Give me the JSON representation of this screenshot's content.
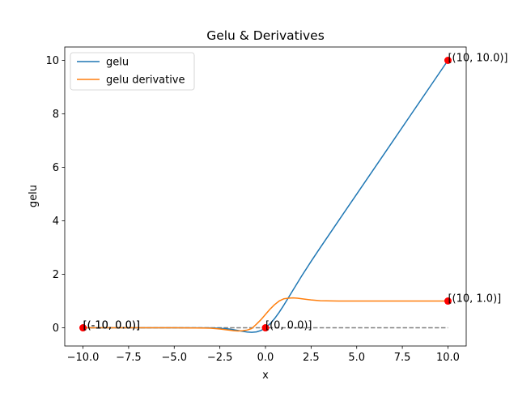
{
  "chart_data": {
    "type": "line",
    "title": "Gelu & Derivatives",
    "xlabel": "x",
    "ylabel": "gelu",
    "xlim": [
      -11,
      11
    ],
    "ylim": [
      -0.68,
      10.5
    ],
    "xticks": [
      -10,
      -7.5,
      -5,
      -2.5,
      0,
      2.5,
      5,
      7.5,
      10
    ],
    "xtick_labels": [
      "−10.0",
      "−7.5",
      "−5.0",
      "−2.5",
      "0.0",
      "2.5",
      "5.0",
      "7.5",
      "10.0"
    ],
    "yticks": [
      0,
      2,
      4,
      6,
      8,
      10
    ],
    "ytick_labels": [
      "0",
      "2",
      "4",
      "6",
      "8",
      "10"
    ],
    "grid": false,
    "legend_position": "top-left",
    "series": [
      {
        "name": "gelu",
        "color": "#1f77b4",
        "x": [
          -10,
          -5,
          -3,
          -2.5,
          -2,
          -1.75,
          -1.5,
          -1.25,
          -1,
          -0.75,
          -0.5,
          -0.25,
          0,
          0.25,
          0.5,
          0.75,
          1,
          1.25,
          1.5,
          2,
          2.5,
          3,
          4,
          5,
          6,
          7,
          8,
          9,
          10
        ],
        "y": [
          0,
          0,
          -0.0036,
          -0.0155,
          -0.0454,
          -0.0702,
          -0.1002,
          -0.1319,
          -0.1587,
          -0.17,
          -0.1543,
          -0.0998,
          0,
          0.1502,
          0.3457,
          0.58,
          0.8413,
          1.1181,
          1.3998,
          1.9546,
          2.4845,
          2.9964,
          4.0,
          5.0,
          6.0,
          7.0,
          8.0,
          9.0,
          10.0
        ]
      },
      {
        "name": "gelu derivative",
        "color": "#ff7f0e",
        "x": [
          -10,
          -5,
          -3,
          -2.5,
          -2,
          -1.75,
          -1.5,
          -1.25,
          -1,
          -0.75,
          -0.5,
          -0.25,
          0,
          0.25,
          0.5,
          0.75,
          1,
          1.25,
          1.5,
          1.75,
          2,
          2.5,
          3,
          4,
          5,
          7.5,
          10
        ],
        "y": [
          0,
          0,
          -0.0119,
          -0.0423,
          -0.0852,
          -0.1075,
          -0.1178,
          -0.1064,
          -0.0833,
          -0.0248,
          0.1325,
          0.302,
          0.5,
          0.698,
          0.8675,
          1.002,
          1.0833,
          1.1064,
          1.1178,
          1.1075,
          1.0852,
          1.0423,
          1.0119,
          1.0005,
          1.0,
          1.0,
          1.0
        ]
      }
    ],
    "reference_line": {
      "x": [
        -10,
        10
      ],
      "y": [
        0,
        0
      ],
      "color": "#808080",
      "style": "dashed"
    },
    "markers": [
      {
        "x": -10,
        "y": 0,
        "color": "#ff0000"
      },
      {
        "x": 0,
        "y": 0,
        "color": "#ff0000"
      },
      {
        "x": 10,
        "y": 10,
        "color": "#ff0000"
      },
      {
        "x": 10,
        "y": 1,
        "color": "#ff0000"
      }
    ],
    "annotations": [
      {
        "text": "[(-10, 0.0)]",
        "x": -10,
        "y": 0
      },
      {
        "text": "[(-10, 0.0)]",
        "x": -10,
        "y": 0
      },
      {
        "text": "[(0, 0.0)]",
        "x": 0,
        "y": 0
      },
      {
        "text": "[(10, 10.0)]",
        "x": 10,
        "y": 10
      },
      {
        "text": "[(10, 1.0)]",
        "x": 10,
        "y": 1
      }
    ]
  }
}
